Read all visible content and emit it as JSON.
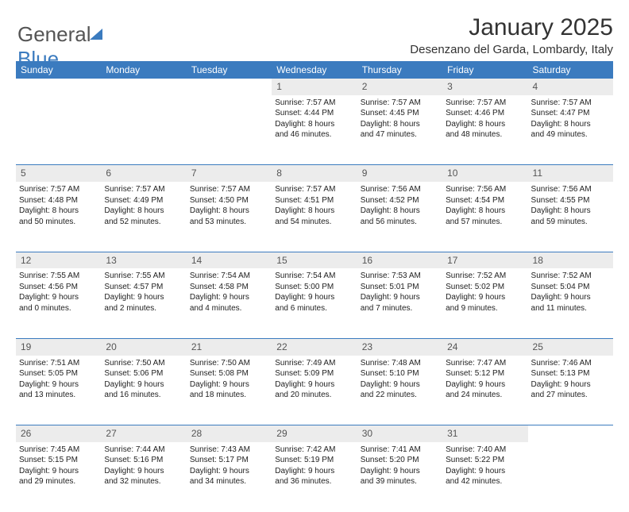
{
  "logo": {
    "part1": "General",
    "part2": "Blue"
  },
  "header": {
    "title": "January 2025",
    "subtitle": "Desenzano del Garda, Lombardy, Italy"
  },
  "colors": {
    "brand": "#3b7bbf",
    "dayRowBg": "#ececec",
    "text": "#222222",
    "bg": "#ffffff"
  },
  "dayNames": [
    "Sunday",
    "Monday",
    "Tuesday",
    "Wednesday",
    "Thursday",
    "Friday",
    "Saturday"
  ],
  "weeks": [
    {
      "nums": [
        "",
        "",
        "",
        "1",
        "2",
        "3",
        "4"
      ],
      "cells": [
        null,
        null,
        null,
        {
          "sunrise": "7:57 AM",
          "sunset": "4:44 PM",
          "dl1": "Daylight: 8 hours",
          "dl2": "and 46 minutes."
        },
        {
          "sunrise": "7:57 AM",
          "sunset": "4:45 PM",
          "dl1": "Daylight: 8 hours",
          "dl2": "and 47 minutes."
        },
        {
          "sunrise": "7:57 AM",
          "sunset": "4:46 PM",
          "dl1": "Daylight: 8 hours",
          "dl2": "and 48 minutes."
        },
        {
          "sunrise": "7:57 AM",
          "sunset": "4:47 PM",
          "dl1": "Daylight: 8 hours",
          "dl2": "and 49 minutes."
        }
      ]
    },
    {
      "nums": [
        "5",
        "6",
        "7",
        "8",
        "9",
        "10",
        "11"
      ],
      "cells": [
        {
          "sunrise": "7:57 AM",
          "sunset": "4:48 PM",
          "dl1": "Daylight: 8 hours",
          "dl2": "and 50 minutes."
        },
        {
          "sunrise": "7:57 AM",
          "sunset": "4:49 PM",
          "dl1": "Daylight: 8 hours",
          "dl2": "and 52 minutes."
        },
        {
          "sunrise": "7:57 AM",
          "sunset": "4:50 PM",
          "dl1": "Daylight: 8 hours",
          "dl2": "and 53 minutes."
        },
        {
          "sunrise": "7:57 AM",
          "sunset": "4:51 PM",
          "dl1": "Daylight: 8 hours",
          "dl2": "and 54 minutes."
        },
        {
          "sunrise": "7:56 AM",
          "sunset": "4:52 PM",
          "dl1": "Daylight: 8 hours",
          "dl2": "and 56 minutes."
        },
        {
          "sunrise": "7:56 AM",
          "sunset": "4:54 PM",
          "dl1": "Daylight: 8 hours",
          "dl2": "and 57 minutes."
        },
        {
          "sunrise": "7:56 AM",
          "sunset": "4:55 PM",
          "dl1": "Daylight: 8 hours",
          "dl2": "and 59 minutes."
        }
      ]
    },
    {
      "nums": [
        "12",
        "13",
        "14",
        "15",
        "16",
        "17",
        "18"
      ],
      "cells": [
        {
          "sunrise": "7:55 AM",
          "sunset": "4:56 PM",
          "dl1": "Daylight: 9 hours",
          "dl2": "and 0 minutes."
        },
        {
          "sunrise": "7:55 AM",
          "sunset": "4:57 PM",
          "dl1": "Daylight: 9 hours",
          "dl2": "and 2 minutes."
        },
        {
          "sunrise": "7:54 AM",
          "sunset": "4:58 PM",
          "dl1": "Daylight: 9 hours",
          "dl2": "and 4 minutes."
        },
        {
          "sunrise": "7:54 AM",
          "sunset": "5:00 PM",
          "dl1": "Daylight: 9 hours",
          "dl2": "and 6 minutes."
        },
        {
          "sunrise": "7:53 AM",
          "sunset": "5:01 PM",
          "dl1": "Daylight: 9 hours",
          "dl2": "and 7 minutes."
        },
        {
          "sunrise": "7:52 AM",
          "sunset": "5:02 PM",
          "dl1": "Daylight: 9 hours",
          "dl2": "and 9 minutes."
        },
        {
          "sunrise": "7:52 AM",
          "sunset": "5:04 PM",
          "dl1": "Daylight: 9 hours",
          "dl2": "and 11 minutes."
        }
      ]
    },
    {
      "nums": [
        "19",
        "20",
        "21",
        "22",
        "23",
        "24",
        "25"
      ],
      "cells": [
        {
          "sunrise": "7:51 AM",
          "sunset": "5:05 PM",
          "dl1": "Daylight: 9 hours",
          "dl2": "and 13 minutes."
        },
        {
          "sunrise": "7:50 AM",
          "sunset": "5:06 PM",
          "dl1": "Daylight: 9 hours",
          "dl2": "and 16 minutes."
        },
        {
          "sunrise": "7:50 AM",
          "sunset": "5:08 PM",
          "dl1": "Daylight: 9 hours",
          "dl2": "and 18 minutes."
        },
        {
          "sunrise": "7:49 AM",
          "sunset": "5:09 PM",
          "dl1": "Daylight: 9 hours",
          "dl2": "and 20 minutes."
        },
        {
          "sunrise": "7:48 AM",
          "sunset": "5:10 PM",
          "dl1": "Daylight: 9 hours",
          "dl2": "and 22 minutes."
        },
        {
          "sunrise": "7:47 AM",
          "sunset": "5:12 PM",
          "dl1": "Daylight: 9 hours",
          "dl2": "and 24 minutes."
        },
        {
          "sunrise": "7:46 AM",
          "sunset": "5:13 PM",
          "dl1": "Daylight: 9 hours",
          "dl2": "and 27 minutes."
        }
      ]
    },
    {
      "nums": [
        "26",
        "27",
        "28",
        "29",
        "30",
        "31",
        ""
      ],
      "cells": [
        {
          "sunrise": "7:45 AM",
          "sunset": "5:15 PM",
          "dl1": "Daylight: 9 hours",
          "dl2": "and 29 minutes."
        },
        {
          "sunrise": "7:44 AM",
          "sunset": "5:16 PM",
          "dl1": "Daylight: 9 hours",
          "dl2": "and 32 minutes."
        },
        {
          "sunrise": "7:43 AM",
          "sunset": "5:17 PM",
          "dl1": "Daylight: 9 hours",
          "dl2": "and 34 minutes."
        },
        {
          "sunrise": "7:42 AM",
          "sunset": "5:19 PM",
          "dl1": "Daylight: 9 hours",
          "dl2": "and 36 minutes."
        },
        {
          "sunrise": "7:41 AM",
          "sunset": "5:20 PM",
          "dl1": "Daylight: 9 hours",
          "dl2": "and 39 minutes."
        },
        {
          "sunrise": "7:40 AM",
          "sunset": "5:22 PM",
          "dl1": "Daylight: 9 hours",
          "dl2": "and 42 minutes."
        },
        null
      ]
    }
  ],
  "labels": {
    "sunrise": "Sunrise: ",
    "sunset": "Sunset: "
  }
}
